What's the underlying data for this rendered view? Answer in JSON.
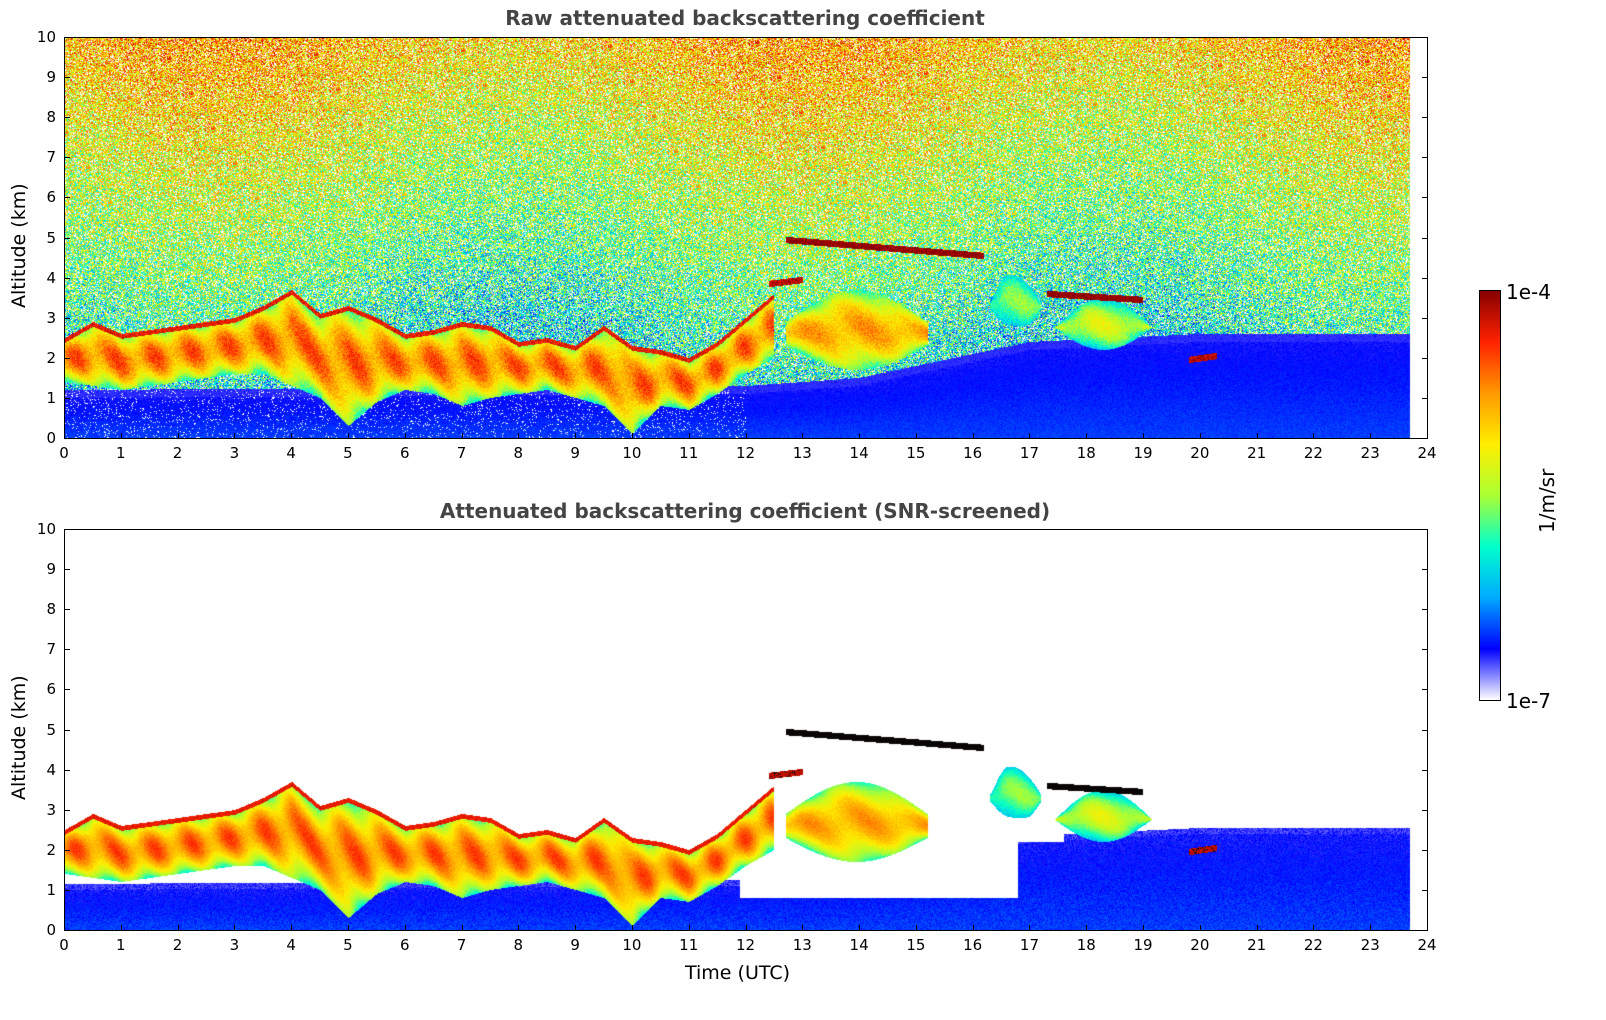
{
  "chart_data": [
    {
      "type": "heatmap",
      "title": "Raw attenuated backscattering coefficient",
      "xlabel": "",
      "ylabel": "Altitude (km)",
      "xlim": [
        0,
        24
      ],
      "ylim": [
        0,
        10
      ],
      "x_ticks": [
        "0",
        "1",
        "2",
        "3",
        "4",
        "5",
        "6",
        "7",
        "8",
        "9",
        "10",
        "11",
        "12",
        "13",
        "14",
        "15",
        "16",
        "17",
        "18",
        "19",
        "20",
        "21",
        "22",
        "23",
        "24"
      ],
      "y_ticks": [
        "0",
        "1",
        "2",
        "3",
        "4",
        "5",
        "6",
        "7",
        "8",
        "9",
        "10"
      ],
      "data_end_time": 23.7,
      "noise_background": true,
      "cloud_layer": {
        "time": [
          0,
          0.5,
          1,
          1.5,
          2,
          2.5,
          3,
          3.5,
          4,
          4.5,
          5,
          5.5,
          6,
          6.5,
          7,
          7.5,
          8,
          8.5,
          9,
          9.5,
          10,
          10.5,
          11,
          11.5,
          12,
          12.5
        ],
        "base_km": [
          1.4,
          1.3,
          1.2,
          1.3,
          1.4,
          1.5,
          1.6,
          1.6,
          1.3,
          1.0,
          0.3,
          0.9,
          1.2,
          1.1,
          0.8,
          1.0,
          1.1,
          1.2,
          1.0,
          0.8,
          0.1,
          0.8,
          0.7,
          1.1,
          1.6,
          2.0
        ],
        "top_km": [
          2.5,
          2.9,
          2.6,
          2.7,
          2.8,
          2.9,
          3.0,
          3.3,
          3.7,
          3.1,
          3.3,
          3.0,
          2.6,
          2.7,
          2.9,
          2.8,
          2.4,
          2.5,
          2.3,
          2.8,
          2.3,
          2.2,
          2.0,
          2.4,
          3.0,
          3.6
        ]
      },
      "elevated_layers": [
        {
          "t_start": 12.7,
          "t_end": 15.2,
          "base_km": 1.7,
          "top_km": 3.7,
          "intensity": 0.72
        },
        {
          "t_start": 16.3,
          "t_end": 17.2,
          "base_km": 2.6,
          "top_km": 4.2,
          "intensity": 0.45
        },
        {
          "t_start": 17.4,
          "t_end": 19.2,
          "base_km": 2.2,
          "top_km": 3.5,
          "intensity": 0.55
        }
      ],
      "thin_layers": [
        {
          "t_start": 12.7,
          "t_end": 16.2,
          "alt_start_km": 4.95,
          "alt_end_km": 4.55,
          "intensity": 1.0
        },
        {
          "t_start": 17.3,
          "t_end": 19.0,
          "alt_start_km": 3.6,
          "alt_end_km": 3.45,
          "intensity": 1.0
        },
        {
          "t_start": 19.8,
          "t_end": 20.3,
          "alt_start_km": 1.95,
          "alt_end_km": 2.05,
          "intensity": 0.95
        },
        {
          "t_start": 12.4,
          "t_end": 13.0,
          "alt_start_km": 3.85,
          "alt_end_km": 3.95,
          "intensity": 0.95
        }
      ],
      "boundary_layer_top_km": {
        "time": [
          0,
          12,
          14,
          17,
          20,
          23.7
        ],
        "value": [
          1.0,
          1.1,
          1.3,
          2.2,
          2.4,
          2.4
        ]
      }
    },
    {
      "type": "heatmap",
      "title": "Attenuated backscattering coefficient (SNR-screened)",
      "xlabel": "Time (UTC)",
      "ylabel": "Altitude (km)",
      "xlim": [
        0,
        24
      ],
      "ylim": [
        0,
        10
      ],
      "x_ticks": [
        "0",
        "1",
        "2",
        "3",
        "4",
        "5",
        "6",
        "7",
        "8",
        "9",
        "10",
        "11",
        "12",
        "13",
        "14",
        "15",
        "16",
        "17",
        "18",
        "19",
        "20",
        "21",
        "22",
        "23",
        "24"
      ],
      "y_ticks": [
        "0",
        "1",
        "2",
        "3",
        "4",
        "5",
        "6",
        "7",
        "8",
        "9",
        "10"
      ],
      "data_end_time": 23.7,
      "noise_background": false,
      "screened_gaps": [
        {
          "t_start": 11.9,
          "t_end": 16.8,
          "base_km": 0.8,
          "top_km": 2.2
        },
        {
          "t_start": 15.8,
          "t_end": 17.6,
          "base_km": 2.2,
          "top_km": 3.1
        }
      ]
    }
  ],
  "colorbar": {
    "max_label": "1e-4",
    "min_label": "1e-7",
    "unit_label": "1/m/sr",
    "colormap": [
      "#ffffff",
      "#0000ff",
      "#00aaff",
      "#00ffcc",
      "#aaff33",
      "#ffee00",
      "#ff9900",
      "#ff2200",
      "#880000"
    ]
  }
}
